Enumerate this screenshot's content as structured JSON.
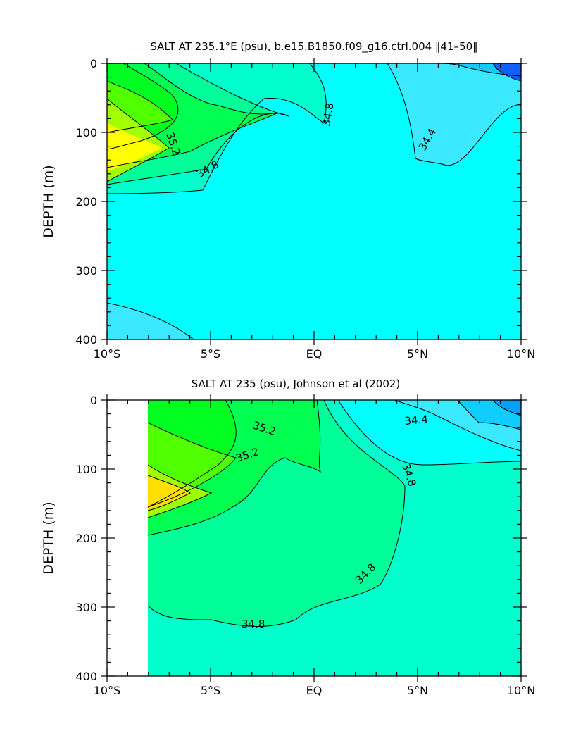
{
  "chart_data": [
    {
      "type": "contour",
      "title": "SALT AT 235.1°E (psu), b.e15.B1850.f09_g16.ctrl.004 ‖41–50‖",
      "xlabel": "",
      "ylabel": "DEPTH (m)",
      "xlim": [
        -10,
        10
      ],
      "ylim": [
        400,
        0
      ],
      "x_ticks": [
        -10,
        -5,
        0,
        5,
        10
      ],
      "x_tick_labels": [
        "10°S",
        "5°S",
        "EQ",
        "5°N",
        "10°N"
      ],
      "y_ticks": [
        0,
        100,
        200,
        300,
        400
      ],
      "y_tick_labels": [
        "0",
        "100",
        "200",
        "300",
        "400"
      ],
      "contour_interval": 0.1,
      "contour_labels": [
        {
          "text": "35.2",
          "x": -5.8,
          "y": 110
        },
        {
          "text": "34.8",
          "x": -4.9,
          "y": 153
        },
        {
          "text": "34.8",
          "x": 0.9,
          "y": 65
        },
        {
          "text": "34.4",
          "x": 5.4,
          "y": 115
        }
      ],
      "colors": {
        "34.2": "#1060ff",
        "34.3": "#00a0ff",
        "34.4": "#10ccff",
        "34.5": "#3ae8ff",
        "34.6": "#00ffff",
        "34.7": "#00ffcc",
        "34.8": "#00ff99",
        "34.9": "#00ff50",
        "35.0": "#00ff20",
        "35.1": "#50ff00",
        "35.2": "#a0ff00",
        "35.3": "#ffff00"
      }
    },
    {
      "type": "contour",
      "title": "SALT AT 235 (psu), Johnson et al (2002)",
      "xlabel": "",
      "ylabel": "DEPTH (m)",
      "xlim": [
        -10,
        10
      ],
      "ylim": [
        400,
        0
      ],
      "x_ticks": [
        -10,
        -5,
        0,
        5,
        10
      ],
      "x_tick_labels": [
        "10°S",
        "5°S",
        "EQ",
        "5°N",
        "10°N"
      ],
      "y_ticks": [
        0,
        100,
        200,
        300,
        400
      ],
      "y_tick_labels": [
        "0",
        "100",
        "200",
        "300",
        "400"
      ],
      "data_start_x": -8,
      "contour_labels": [
        {
          "text": "35.2",
          "x": -2.5,
          "y": 40
        },
        {
          "text": "35.2",
          "x": -3.9,
          "y": 90
        },
        {
          "text": "34.8",
          "x": 4.6,
          "y": 110
        },
        {
          "text": "34.8",
          "x": 2.5,
          "y": 290
        },
        {
          "text": "34.8",
          "x": -3.2,
          "y": 348
        },
        {
          "text": "34.4",
          "x": 5.4,
          "y": 32
        }
      ]
    }
  ]
}
